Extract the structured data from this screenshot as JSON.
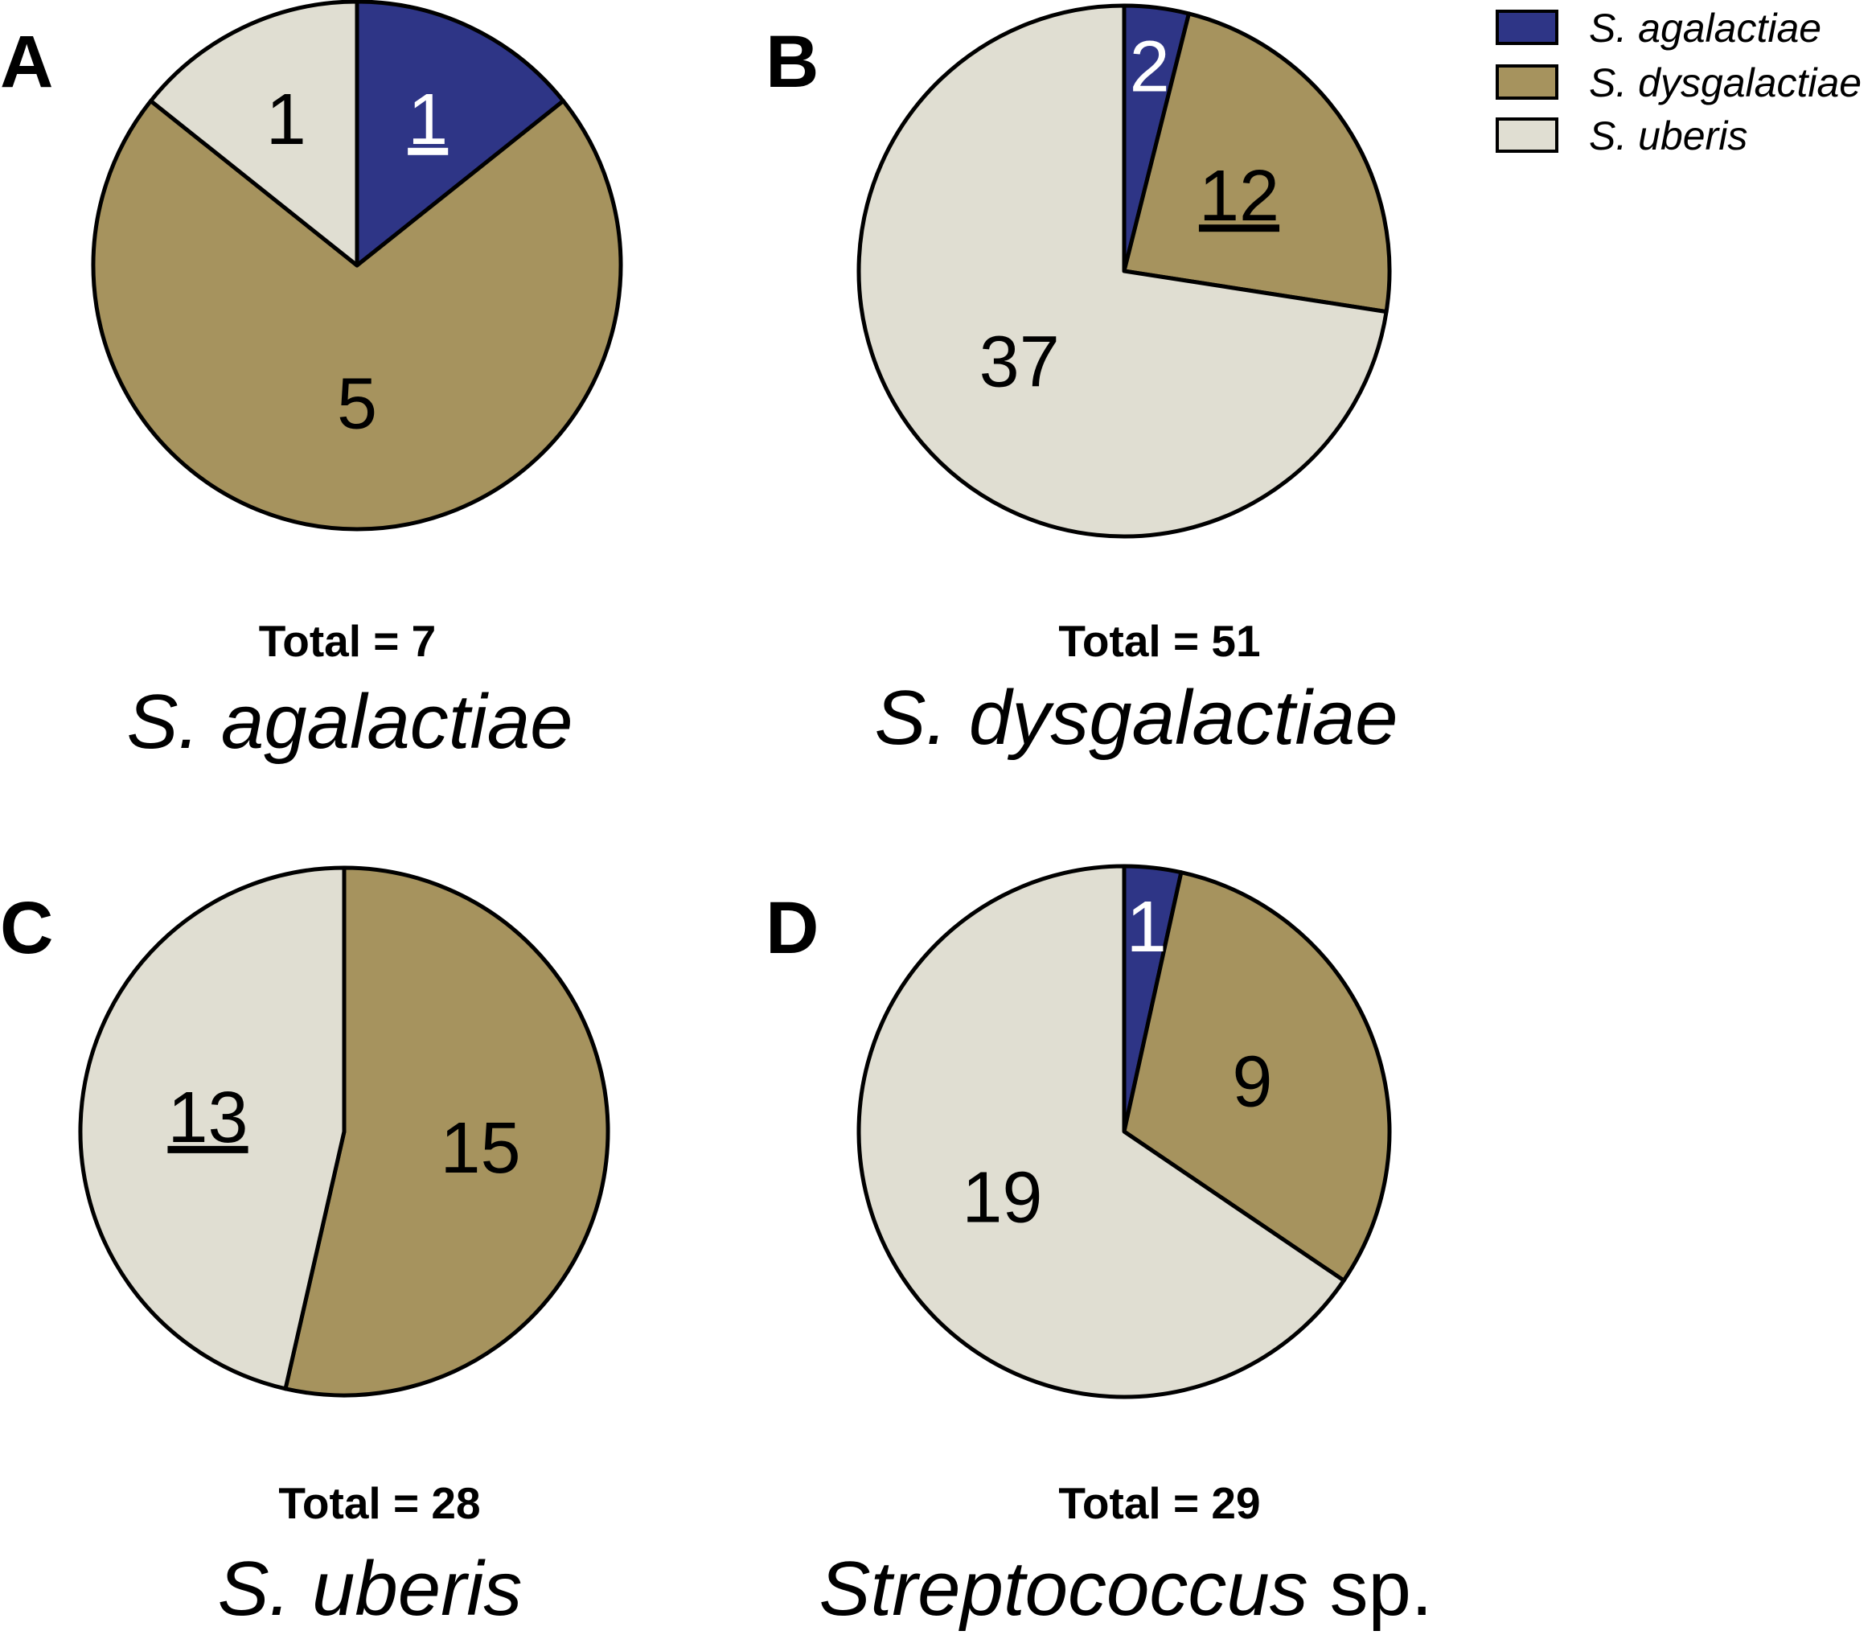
{
  "legend": {
    "items": [
      {
        "label": "S. agalactiae",
        "color": "#2e3586"
      },
      {
        "label": "S. dysgalactiae",
        "color": "#a6935e"
      },
      {
        "label": "S. uberis",
        "color": "#e0ded2"
      }
    ]
  },
  "chart_data": [
    {
      "type": "pie",
      "panel": "A",
      "total_label": "Total = 7",
      "title": "S. agalactiae",
      "start_angle_deg": 0,
      "direction": "clockwise",
      "slices": [
        {
          "series": "S. agalactiae",
          "value": 1,
          "label": "1",
          "underlined": true
        },
        {
          "series": "S. dysgalactiae",
          "value": 5,
          "label": "5",
          "underlined": false
        },
        {
          "series": "S. uberis",
          "value": 1,
          "label": "1",
          "underlined": false
        }
      ]
    },
    {
      "type": "pie",
      "panel": "B",
      "total_label": "Total = 51",
      "title": "S. dysgalactiae",
      "start_angle_deg": 0,
      "direction": "clockwise",
      "slices": [
        {
          "series": "S. agalactiae",
          "value": 2,
          "label": "2",
          "underlined": false
        },
        {
          "series": "S. dysgalactiae",
          "value": 12,
          "label": "12",
          "underlined": true
        },
        {
          "series": "S. uberis",
          "value": 37,
          "label": "37",
          "underlined": false
        }
      ]
    },
    {
      "type": "pie",
      "panel": "C",
      "total_label": "Total = 28",
      "title": "S. uberis",
      "start_angle_deg": 0,
      "direction": "clockwise",
      "slices": [
        {
          "series": "S. agalactiae",
          "value": 0,
          "label": "",
          "underlined": false
        },
        {
          "series": "S. dysgalactiae",
          "value": 15,
          "label": "15",
          "underlined": false
        },
        {
          "series": "S. uberis",
          "value": 13,
          "label": "13",
          "underlined": true
        }
      ]
    },
    {
      "type": "pie",
      "panel": "D",
      "total_label": "Total = 29",
      "title": "Streptococcus",
      "title_suffix": " sp.",
      "start_angle_deg": 0,
      "direction": "clockwise",
      "slices": [
        {
          "series": "S. agalactiae",
          "value": 1,
          "label": "1",
          "underlined": false
        },
        {
          "series": "S. dysgalactiae",
          "value": 9,
          "label": "9",
          "underlined": false
        },
        {
          "series": "S. uberis",
          "value": 19,
          "label": "19",
          "underlined": false
        }
      ]
    }
  ]
}
